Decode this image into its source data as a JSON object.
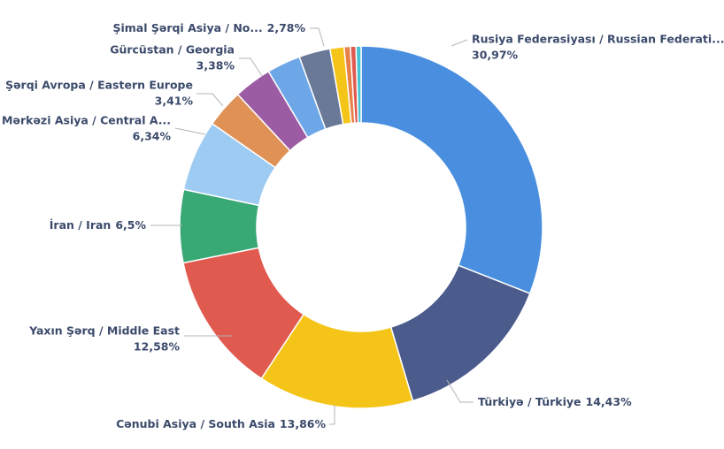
{
  "chart_data": {
    "type": "donut",
    "categories": [
      "Rusiya Federasiyası / Russian Federati...",
      "Türkiyə / Türkiye",
      "Cənubi Asiya / South Asia",
      "Yaxın Şərq / Middle East",
      "İran / Iran",
      "Mərkəzi Asiya / Central A...",
      "Şərqi Avropa / Eastern Europe",
      "Gürcüstan / Georgia",
      null,
      "Şimal Şərqi Asiya / No...",
      null,
      null,
      null,
      null
    ],
    "values": [
      30.97,
      14.43,
      13.86,
      12.58,
      6.5,
      6.34,
      3.41,
      3.38,
      3.0,
      2.78,
      1.25,
      0.55,
      0.5,
      0.45
    ],
    "value_labels": [
      "30,97%",
      "14,43%",
      "13,86%",
      "12,58%",
      "6,5%",
      "6,34%",
      "3,41%",
      "3,38%",
      null,
      "2,78%",
      null,
      null,
      null,
      null
    ],
    "colors": [
      "#4a8fdf",
      "#4a5b8c",
      "#f4c518",
      "#e05a4f",
      "#38a875",
      "#9dcbf2",
      "#e09155",
      "#9b5ca3",
      "#6ea7e8",
      "#6a7998",
      "#f4c518",
      "#e8804a",
      "#e05a4f",
      "#45c3d3"
    ]
  }
}
